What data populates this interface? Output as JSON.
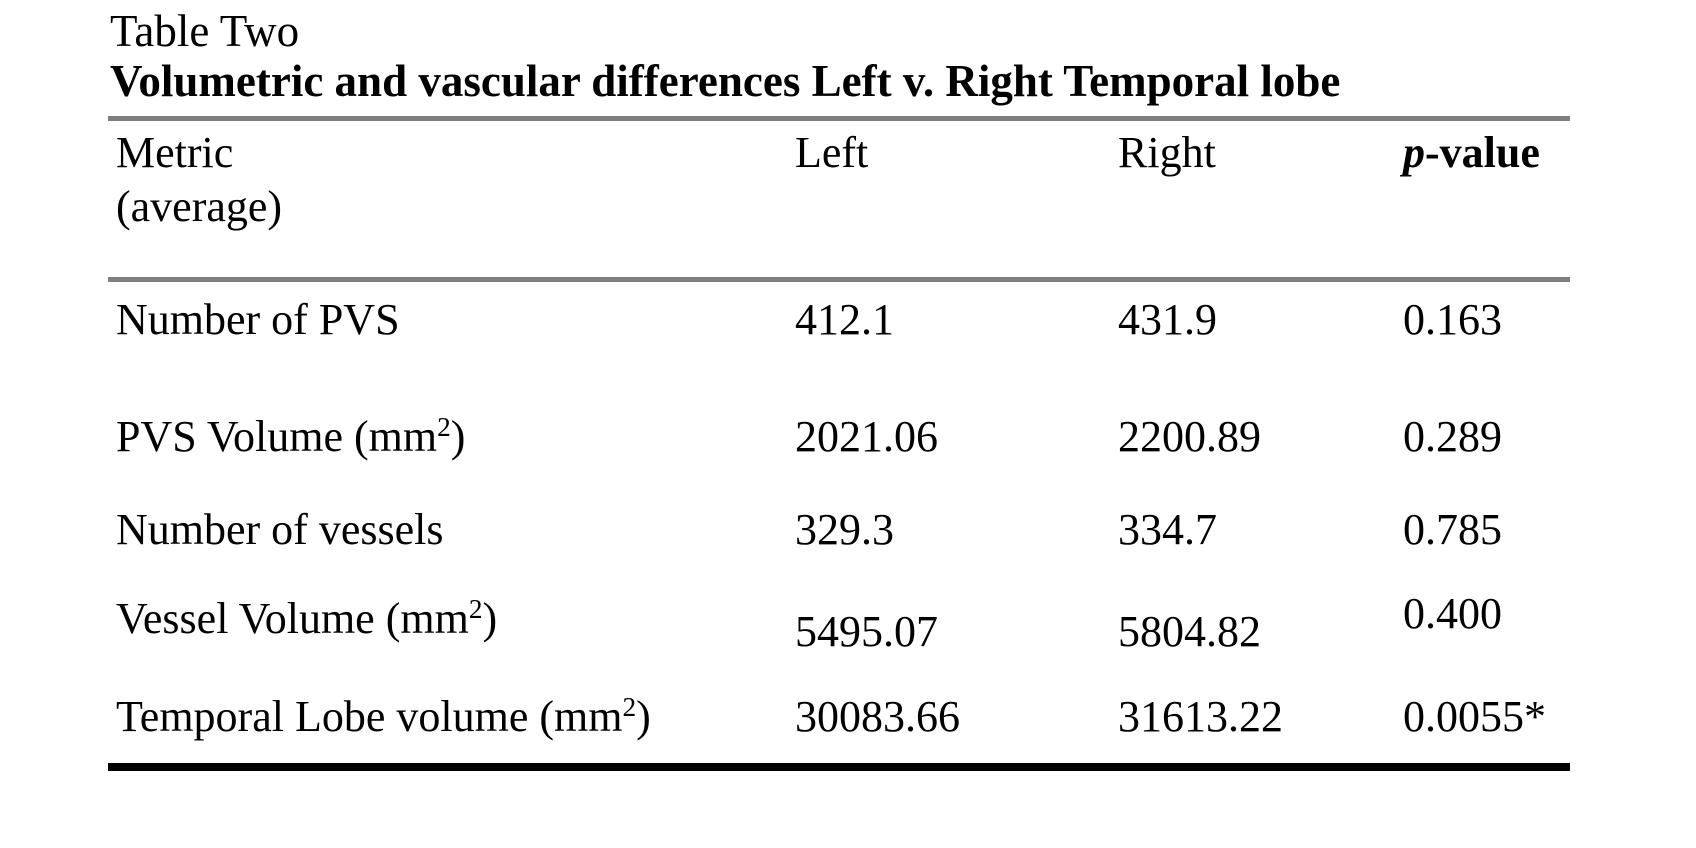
{
  "page": {
    "background": "#ffffff",
    "text_color": "#000000",
    "rule_gray": "#7f7f7f",
    "rule_black": "#000000"
  },
  "table": {
    "label": "Table Two",
    "title": "Volumetric and vascular differences Left v. Right Temporal lobe",
    "columns": {
      "metric_line1": "Metric",
      "metric_line2": "(average)",
      "left": "Left",
      "right": "Right",
      "p_italic": "p",
      "p_rest": "-value"
    },
    "rows": [
      {
        "metric_pre": "Number of PVS",
        "metric_sup": "",
        "metric_post": "",
        "left": "412.1",
        "right": "431.9",
        "p": "0.163"
      },
      {
        "metric_pre": "PVS Volume (mm",
        "metric_sup": "2",
        "metric_post": ")",
        "left": "2021.06",
        "right": "2200.89",
        "p": "0.289"
      },
      {
        "metric_pre": "Number of vessels",
        "metric_sup": "",
        "metric_post": "",
        "left": "329.3",
        "right": "334.7",
        "p": "0.785"
      },
      {
        "metric_pre": "Vessel Volume (mm",
        "metric_sup": "2",
        "metric_post": ")",
        "left": "5495.07",
        "right": "5804.82",
        "p": "0.400"
      },
      {
        "metric_pre": "Temporal Lobe volume (mm",
        "metric_sup": "2",
        "metric_post": ")",
        "left": "30083.66",
        "right": "31613.22",
        "p": "0.0055*"
      }
    ]
  }
}
